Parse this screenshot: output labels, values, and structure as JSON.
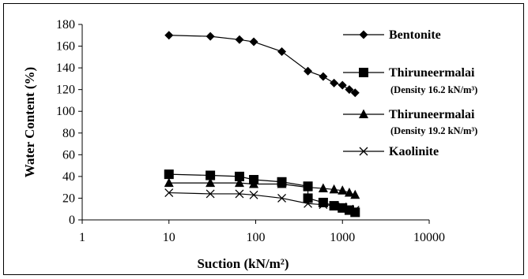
{
  "chart_data": {
    "type": "line",
    "title": "",
    "xlabel": "Suction (kN/m²)",
    "ylabel": "Water Content (%)",
    "x_scale": "log",
    "xlim": [
      1,
      10000
    ],
    "ylim": [
      0,
      180
    ],
    "x_ticks": [
      1,
      10,
      100,
      1000,
      10000
    ],
    "x_tick_labels": [
      "1",
      "10",
      "100",
      "1000",
      "10000"
    ],
    "y_ticks": [
      0,
      20,
      40,
      60,
      80,
      100,
      120,
      140,
      160,
      180
    ],
    "y_tick_labels": [
      "0",
      "20",
      "40",
      "60",
      "80",
      "100",
      "120",
      "140",
      "160",
      "180"
    ],
    "grid": false,
    "legend_position": "right",
    "series": [
      {
        "name": "Bentonite",
        "sub": "",
        "marker": "diamond",
        "color": "#000000",
        "x": [
          10,
          30,
          65,
          95,
          200,
          400,
          600,
          800,
          1000,
          1200,
          1400
        ],
        "y": [
          170,
          169,
          166,
          164,
          155,
          137,
          132,
          126,
          124,
          120,
          117
        ]
      },
      {
        "name": "Thiruneermalai",
        "sub": "(Density 16.2 kN/m³)",
        "marker": "square",
        "color": "#000000",
        "x": [
          10,
          30,
          65,
          95,
          200,
          400,
          400,
          600,
          800,
          1000,
          1200,
          1400
        ],
        "y": [
          42,
          41,
          40,
          37,
          35,
          31,
          20,
          16,
          13,
          11,
          9,
          7
        ]
      },
      {
        "name": "Thiruneermalai",
        "sub": "(Density 19.2 kN/m³)",
        "marker": "triangle",
        "color": "#000000",
        "x": [
          10,
          30,
          65,
          95,
          200,
          400,
          600,
          800,
          1000,
          1200,
          1400
        ],
        "y": [
          34,
          34,
          34,
          33,
          33,
          30,
          29,
          28,
          27,
          25,
          23
        ]
      },
      {
        "name": "Kaolinite",
        "sub": "",
        "marker": "x",
        "color": "#000000",
        "x": [
          10,
          30,
          65,
          95,
          200,
          400,
          600,
          800,
          1000,
          1200,
          1400
        ],
        "y": [
          25,
          24,
          24,
          23,
          20,
          15,
          14,
          13,
          12,
          10,
          9
        ]
      }
    ]
  }
}
